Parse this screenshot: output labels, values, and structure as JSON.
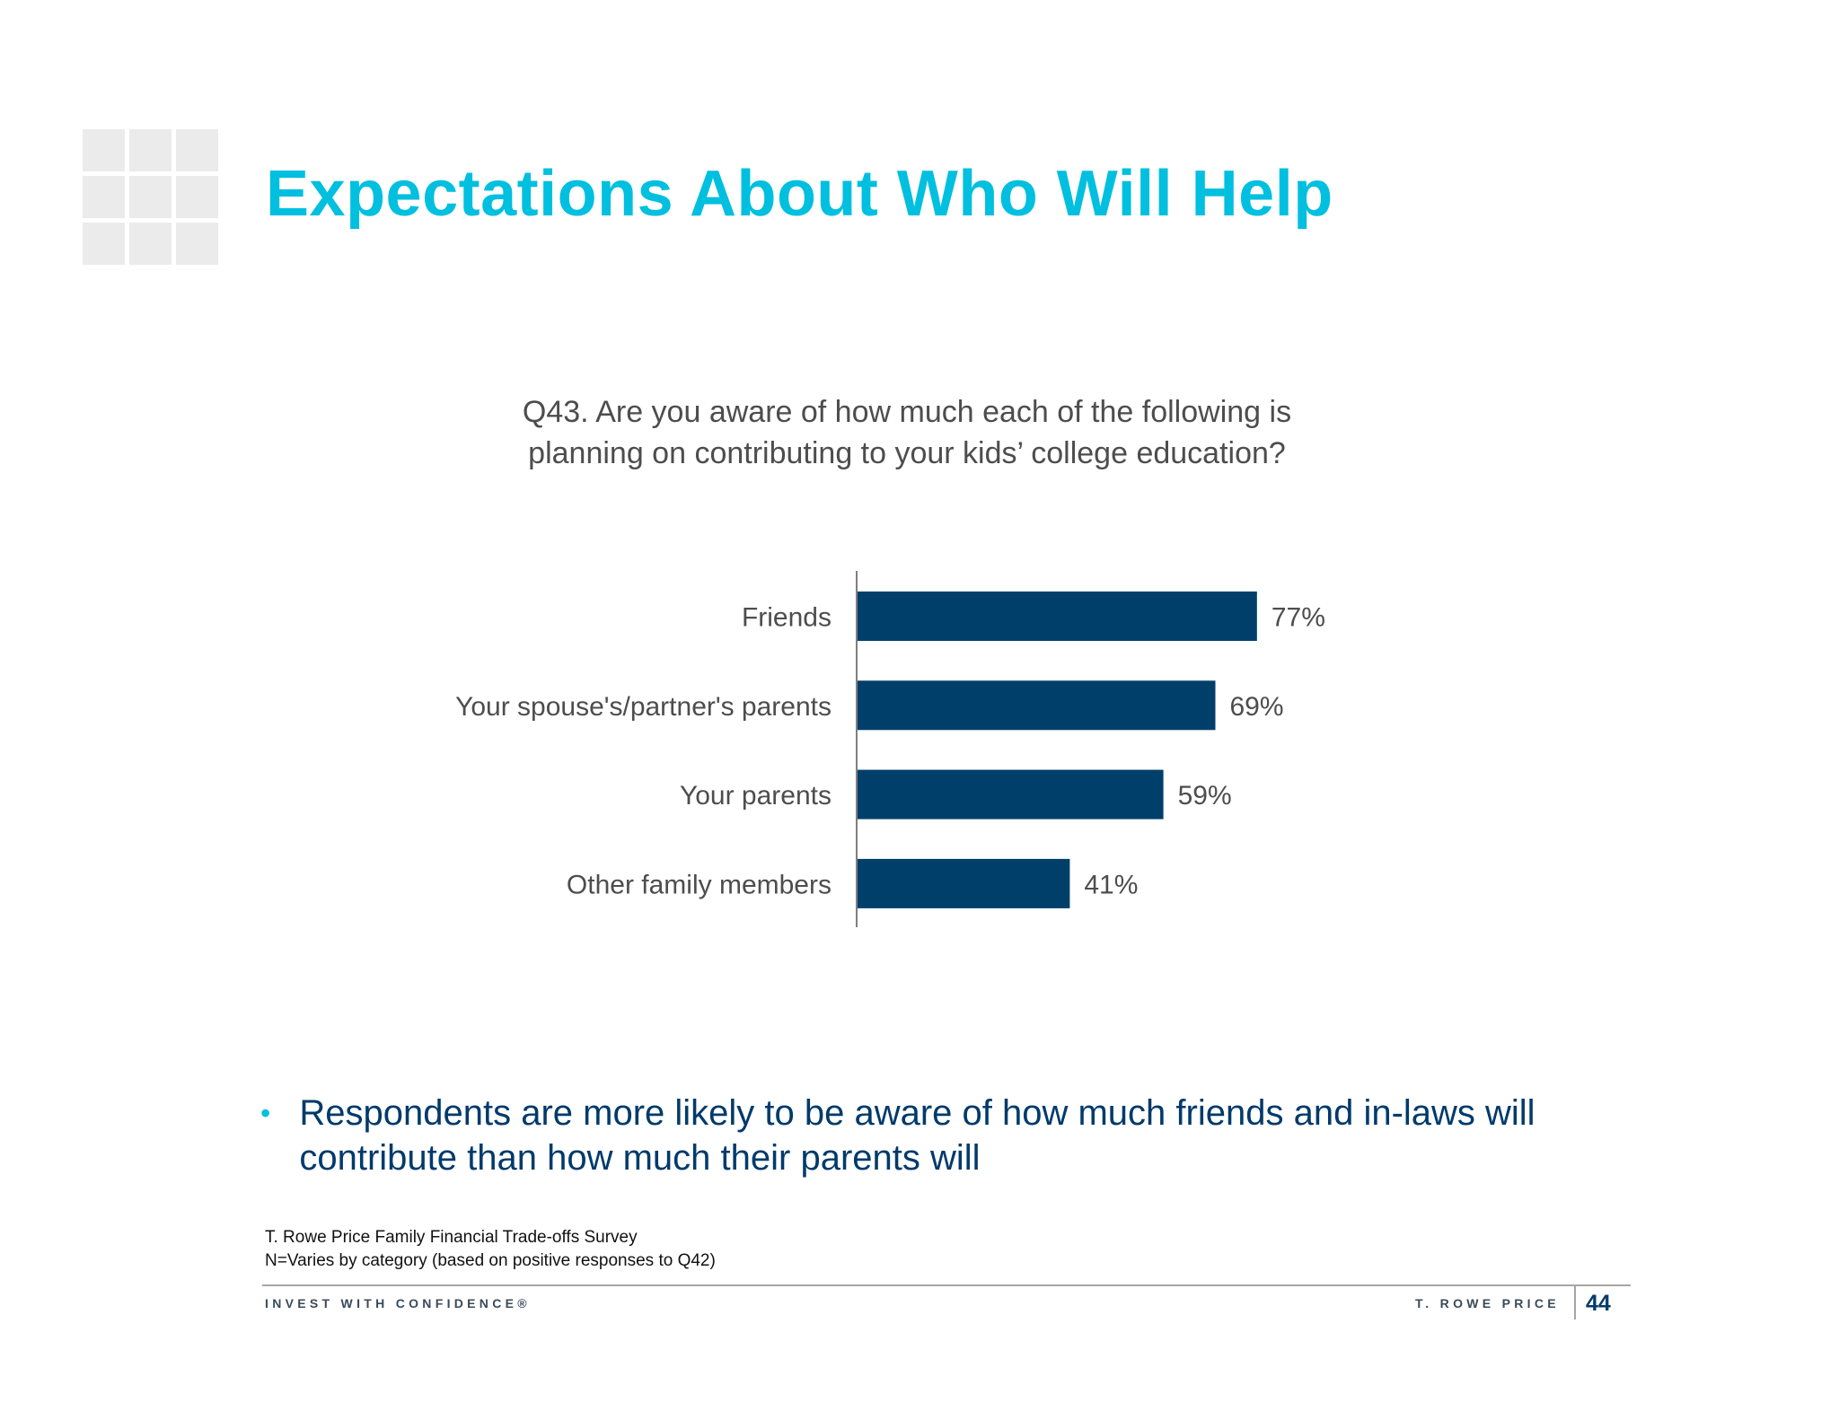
{
  "title": "Expectations About Who Will Help",
  "question": {
    "line1": "Q43. Are you aware of how much each of the following is",
    "line2": "planning on contributing to your kids’ college education?"
  },
  "chart_data": {
    "type": "bar",
    "orientation": "horizontal",
    "categories": [
      "Friends",
      "Your spouse's/partner's parents",
      "Your parents",
      "Other family members"
    ],
    "values": [
      77,
      69,
      59,
      41
    ],
    "value_labels": [
      "77%",
      "69%",
      "59%",
      "41%"
    ],
    "xlim": [
      0,
      100
    ],
    "grid": false,
    "bar_color": "#003f6a"
  },
  "bullet": {
    "marker": "•",
    "text": "Respondents are more likely to be aware of how much friends and in-laws will contribute than how much their parents will"
  },
  "footnotes": {
    "source": "T. Rowe Price Family Financial Trade-offs Survey",
    "sample": "N=Varies by category (based on positive responses to Q42)"
  },
  "footer": {
    "tagline": "INVEST WITH CONFIDENCE®",
    "brand": "T. ROWE PRICE",
    "page_number": "44"
  },
  "colors": {
    "title": "#00bfdf",
    "bullet_text": "#003a6b",
    "bullet_marker": "#00bfdf"
  }
}
